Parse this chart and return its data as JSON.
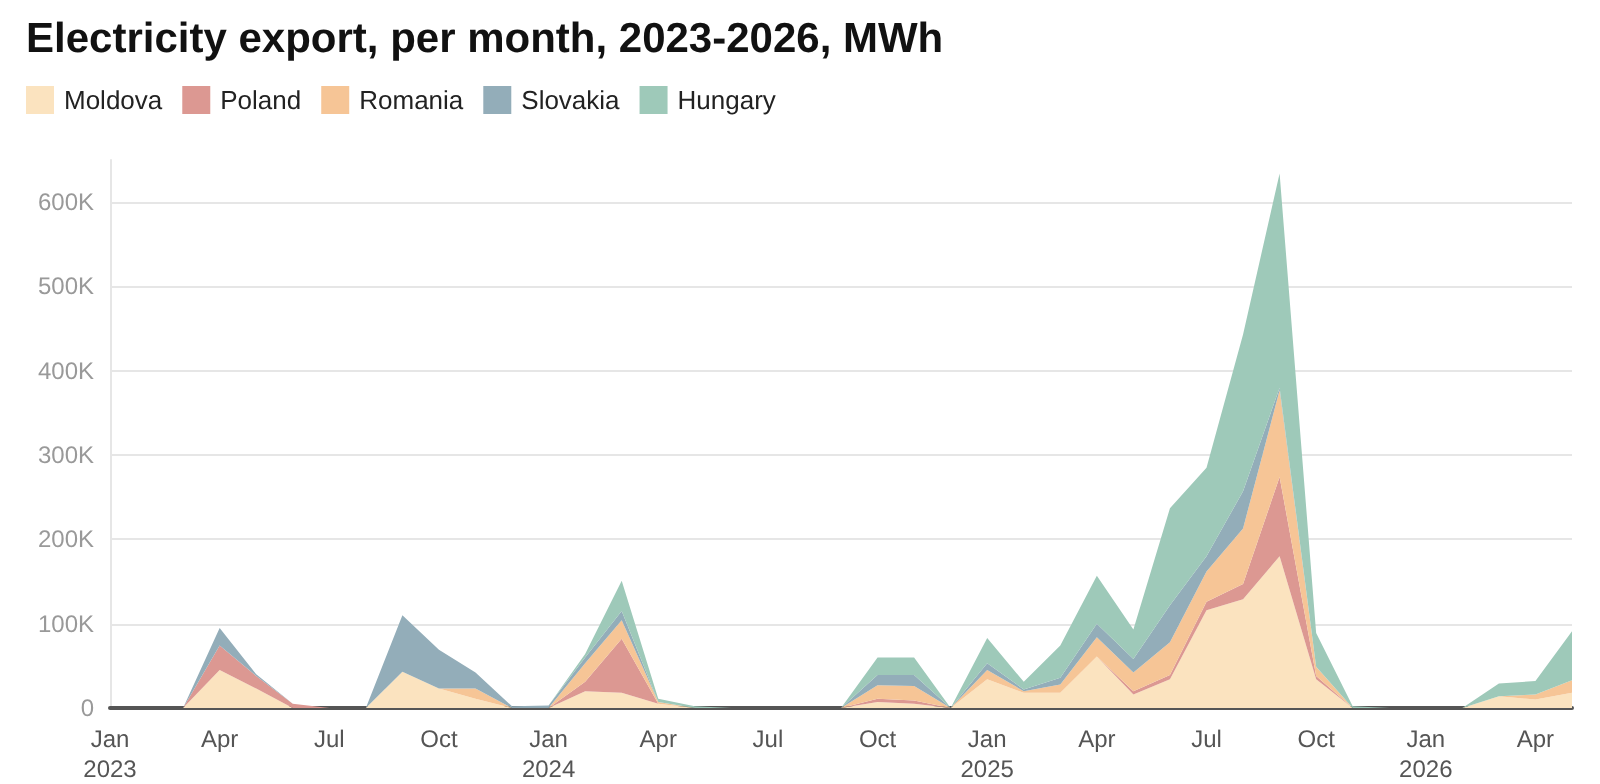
{
  "chart_data": {
    "type": "area",
    "title": "Electricity export, per month, 2023-2026, MWh",
    "stacked": true,
    "grid": "y",
    "legend": "top left",
    "marker": "none",
    "categories": [
      "Jan\n2023",
      null,
      null,
      "Apr",
      null,
      null,
      "Jul",
      null,
      null,
      "Oct",
      null,
      null,
      "Jan\n2024",
      null,
      null,
      "Apr",
      null,
      null,
      "Jul",
      null,
      null,
      "Oct",
      null,
      null,
      "Jan\n2025",
      null,
      null,
      "Apr",
      null,
      null,
      "Jul",
      null,
      null,
      "Oct",
      null,
      null,
      "Jan\n2026",
      null,
      null,
      "Apr",
      null
    ],
    "ylim": [
      0,
      650000
    ],
    "yticks": [
      0,
      {
        "value": 100000,
        "label": "100K"
      },
      {
        "value": 200000,
        "label": "200K"
      },
      {
        "value": 300000,
        "label": "300K"
      },
      {
        "value": 400000,
        "label": "400K"
      },
      {
        "value": 500000,
        "label": "500K"
      },
      {
        "value": 600000,
        "label": "600K"
      }
    ],
    "series": [
      {
        "name": "Moldova",
        "color": "#fbe3bf",
        "values": [
          0,
          0,
          0,
          45000,
          23000,
          0,
          0,
          0,
          43000,
          23000,
          11000,
          0,
          0,
          20000,
          18000,
          5000,
          0,
          0,
          0,
          0,
          0,
          7000,
          5000,
          0,
          34000,
          18000,
          18000,
          61000,
          16000,
          34000,
          116000,
          129000,
          180000,
          34000,
          0,
          0,
          0,
          0,
          14000,
          10000,
          18000
        ]
      },
      {
        "name": "Poland",
        "color": "#dc9892",
        "values": [
          0,
          0,
          0,
          29000,
          15000,
          5000,
          0,
          0,
          0,
          0,
          0,
          0,
          0,
          11000,
          64000,
          0,
          0,
          0,
          0,
          0,
          0,
          4000,
          4000,
          0,
          0,
          0,
          0,
          0,
          4000,
          5000,
          10000,
          18000,
          94000,
          4000,
          0,
          0,
          0,
          0,
          0,
          0,
          0
        ]
      },
      {
        "name": "Romania",
        "color": "#f6c596",
        "values": [
          0,
          0,
          0,
          0,
          0,
          0,
          0,
          0,
          0,
          0,
          12000,
          0,
          0,
          22000,
          22000,
          2000,
          0,
          0,
          0,
          0,
          0,
          16000,
          17000,
          0,
          11000,
          2000,
          10000,
          23000,
          22000,
          39000,
          36000,
          66000,
          103000,
          11000,
          0,
          0,
          0,
          0,
          0,
          6000,
          15000
        ]
      },
      {
        "name": "Slovakia",
        "color": "#93adb9",
        "values": [
          0,
          0,
          0,
          21000,
          2000,
          0,
          0,
          0,
          67000,
          46000,
          19000,
          2000,
          3000,
          7000,
          11000,
          0,
          0,
          0,
          0,
          0,
          0,
          12000,
          13000,
          0,
          8000,
          2000,
          8000,
          16000,
          16000,
          44000,
          18000,
          44000,
          3000,
          0,
          0,
          0,
          0,
          0,
          0,
          0,
          0
        ]
      },
      {
        "name": "Hungary",
        "color": "#9ec9b9",
        "values": [
          0,
          0,
          0,
          0,
          0,
          0,
          0,
          0,
          0,
          0,
          0,
          0,
          0,
          4000,
          36000,
          4000,
          2000,
          0,
          0,
          0,
          0,
          21000,
          21000,
          0,
          30000,
          9000,
          38000,
          57000,
          35000,
          115000,
          105000,
          186000,
          254000,
          40000,
          2000,
          0,
          0,
          0,
          15000,
          16000,
          58000
        ]
      }
    ]
  }
}
